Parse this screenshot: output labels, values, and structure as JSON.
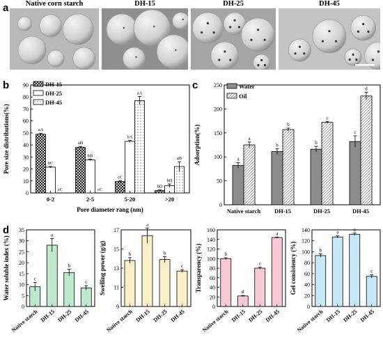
{
  "panel_a": {
    "letter": "a",
    "images": [
      {
        "title": "Native corn starch",
        "tone": "#b9b9b9"
      },
      {
        "title": "DH-15",
        "tone": "#8f8f8f"
      },
      {
        "title": "DH-25",
        "tone": "#a5a5a5"
      },
      {
        "title": "DH-45",
        "tone": "#c4c4c4"
      }
    ]
  },
  "colors": {
    "crosshatch": "#000000",
    "green": "#bfe9cf",
    "yellow": "#fbf1c9",
    "pink": "#f7c9d6",
    "blue": "#c7e9f7",
    "gray_bar": "#8c8c8c"
  },
  "chart_data": [
    {
      "id": "b",
      "letter": "b",
      "type": "bar",
      "xlabel": "Pore diameter rang (nm)",
      "ylabel": "Pore size distributions(%)",
      "categories": [
        "0-2",
        "2-5",
        "5-20",
        ">20"
      ],
      "ylim": [
        0,
        90
      ],
      "yticks": [
        0,
        10,
        20,
        30,
        40,
        50,
        60,
        70,
        80,
        90
      ],
      "legend": {
        "position": "top-left",
        "entries": [
          "DH-15",
          "DH-25",
          "DH-45"
        ]
      },
      "series": [
        {
          "name": "DH-15",
          "values": [
            49,
            38,
            9.5,
            2
          ],
          "errors": [
            0.8,
            0.8,
            0.8,
            0.5
          ],
          "labels": [
            "aA",
            "aB",
            "cC",
            "bD"
          ]
        },
        {
          "name": "DH-25",
          "values": [
            21.5,
            27.5,
            43,
            6
          ],
          "errors": [
            0.6,
            0.6,
            0.8,
            1.5
          ],
          "labels": [
            "bC",
            "bB",
            "bA",
            "bD"
          ]
        },
        {
          "name": "DH-45",
          "values": [
            0,
            0,
            77,
            22
          ],
          "errors": [
            0,
            0,
            3.5,
            4
          ],
          "labels": [
            "cC",
            "cC",
            "aA",
            "aB"
          ]
        }
      ]
    },
    {
      "id": "c",
      "letter": "c",
      "type": "bar",
      "ylabel": "Adsorption(%)",
      "categories": [
        "Native starch",
        "DH-15",
        "DH-25",
        "DH-45"
      ],
      "ylim": [
        0,
        250
      ],
      "yticks": [
        0,
        50,
        100,
        150,
        200,
        250
      ],
      "legend": {
        "position": "top-left",
        "entries": [
          "Water",
          "Oil"
        ]
      },
      "series": [
        {
          "name": "Water",
          "values": [
            82,
            111,
            116,
            132
          ],
          "errors": [
            6,
            6,
            6,
            12
          ],
          "labels": [
            "a",
            "b",
            "b",
            "c"
          ]
        },
        {
          "name": "Oil",
          "values": [
            125,
            157,
            172,
            227
          ],
          "errors": [
            6,
            3,
            2,
            8
          ],
          "labels": [
            "a",
            "b",
            "c",
            "d"
          ]
        }
      ]
    },
    {
      "id": "d1",
      "letter": "d",
      "type": "bar",
      "ylabel": "Water soluble index (%)",
      "categories": [
        "Native starch",
        "DH-15",
        "DH-25",
        "DH-45"
      ],
      "ylim": [
        0,
        35
      ],
      "yticks": [
        0,
        5,
        10,
        15,
        20,
        25,
        30,
        35
      ],
      "values": [
        9,
        28,
        15.5,
        8.5
      ],
      "errors": [
        2,
        3,
        1.5,
        1
      ],
      "labels": [
        "c",
        "a",
        "b",
        "c"
      ]
    },
    {
      "id": "d2",
      "type": "bar",
      "ylabel": "Swelling power (g/g)",
      "categories": [
        "Native starch",
        "DH-15",
        "DH-25",
        "DH-45"
      ],
      "ylim": [
        9,
        17
      ],
      "yticks": [
        9,
        11,
        13,
        15,
        17
      ],
      "values": [
        13.8,
        16.4,
        13.9,
        12.7
      ],
      "errors": [
        0.3,
        0.8,
        0.3,
        0.15
      ],
      "labels": [
        "b",
        "a",
        "b",
        "c"
      ]
    },
    {
      "id": "d3",
      "type": "bar",
      "ylabel": "Transparency (%)",
      "categories": [
        "Native starch",
        "DH-15",
        "DH-25",
        "DH-45"
      ],
      "ylim": [
        0,
        160
      ],
      "yticks": [
        0,
        20,
        40,
        60,
        80,
        100,
        120,
        140,
        160
      ],
      "values": [
        100,
        22,
        80,
        144
      ],
      "errors": [
        2,
        1,
        2,
        1
      ],
      "labels": [
        "b",
        "d",
        "c",
        "a"
      ]
    },
    {
      "id": "d4",
      "type": "bar",
      "ylabel": "Gel consistency (%)",
      "categories": [
        "Native starch",
        "DH-15",
        "DH-25",
        "DH-45"
      ],
      "ylim": [
        0,
        140
      ],
      "yticks": [
        0,
        20,
        40,
        60,
        80,
        100,
        120,
        140
      ],
      "values": [
        93,
        127,
        132,
        55
      ],
      "errors": [
        3,
        2,
        2,
        3
      ],
      "labels": [
        "b",
        "a",
        "a",
        "c"
      ]
    }
  ]
}
